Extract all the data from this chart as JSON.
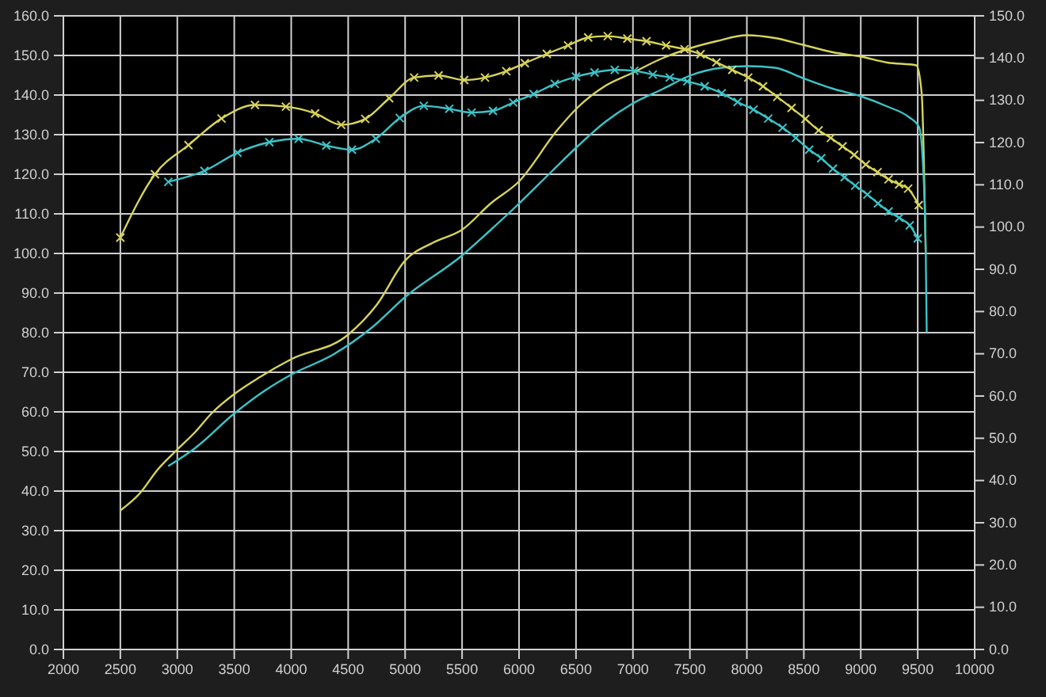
{
  "chart_data": {
    "type": "line",
    "grid": true,
    "xlim": [
      2000,
      10000
    ],
    "xticks": [
      2000,
      2500,
      3000,
      3500,
      4000,
      4500,
      5000,
      5500,
      6000,
      6500,
      7000,
      7500,
      8000,
      8500,
      9000,
      9500,
      10000
    ],
    "ylim": [
      0,
      160
    ],
    "yticks": [
      {
        "value": 0,
        "label": "0.0"
      },
      {
        "value": 10,
        "label": "10.0"
      },
      {
        "value": 20,
        "label": "20.0"
      },
      {
        "value": 30,
        "label": "30.0"
      },
      {
        "value": 40,
        "label": "40.0"
      },
      {
        "value": 50,
        "label": "50.0"
      },
      {
        "value": 60,
        "label": "60.0"
      },
      {
        "value": 70,
        "label": "70.0"
      },
      {
        "value": 80,
        "label": "80.0"
      },
      {
        "value": 90,
        "label": "90.0"
      },
      {
        "value": 100,
        "label": "100.0"
      },
      {
        "value": 110,
        "label": "110.0"
      },
      {
        "value": 120,
        "label": "120.0"
      },
      {
        "value": 130,
        "label": "130.0"
      },
      {
        "value": 140,
        "label": "140.0"
      },
      {
        "value": 150,
        "label": "150.0"
      },
      {
        "value": 160,
        "label": "160.0"
      }
    ],
    "y2lim": [
      0,
      150
    ],
    "y2ticks": [
      {
        "value": 0,
        "label": "0.0"
      },
      {
        "value": 10,
        "label": "10.0"
      },
      {
        "value": 20,
        "label": "20.0"
      },
      {
        "value": 30,
        "label": "30.0"
      },
      {
        "value": 40,
        "label": "40.0"
      },
      {
        "value": 50,
        "label": "50.0"
      },
      {
        "value": 60,
        "label": "60.0"
      },
      {
        "value": 70,
        "label": "70.0"
      },
      {
        "value": 80,
        "label": "80.0"
      },
      {
        "value": 90,
        "label": "90.0"
      },
      {
        "value": 100,
        "label": "100.0"
      },
      {
        "value": 110,
        "label": "110.0"
      },
      {
        "value": 120,
        "label": "120.0"
      },
      {
        "value": 130,
        "label": "130.0"
      },
      {
        "value": 140,
        "label": "140.0"
      },
      {
        "value": 150,
        "label": "150.0"
      }
    ],
    "series": [
      {
        "color": "#d8d45a",
        "marker": "none",
        "x": [
          2500,
          2670,
          2830,
          3000,
          3160,
          3300,
          3500,
          3720,
          4000,
          4500,
          4750,
          5000,
          5250,
          5500,
          5750,
          6000,
          6337,
          6523,
          6756,
          6988,
          7267,
          7500,
          7733,
          8000,
          8245,
          8490,
          8756,
          9000,
          9233,
          9488,
          9535,
          9570
        ],
        "values": [
          35.1,
          39.4,
          45.5,
          50.5,
          55,
          59.6,
          64.5,
          68.7,
          73.3,
          79.5,
          87,
          98.2,
          102.8,
          106,
          112.6,
          118.2,
          131.2,
          137.1,
          142.3,
          145.5,
          149.4,
          151.8,
          153.6,
          155.1,
          154.4,
          152.7,
          150.8,
          149.7,
          148.2,
          147.5,
          140.3,
          100
        ]
      },
      {
        "color": "#3cc4c8",
        "marker": "none",
        "x": [
          2920,
          3150,
          3500,
          3770,
          4000,
          4370,
          4700,
          5000,
          5500,
          5730,
          6000,
          6290,
          6523,
          6756,
          6988,
          7267,
          7500,
          7779,
          8012,
          8245,
          8490,
          8756,
          9000,
          9233,
          9419,
          9512,
          9549,
          9570,
          9579
        ],
        "values": [
          46.3,
          50.7,
          59.6,
          65.4,
          69.4,
          74.5,
          81.1,
          89,
          99.5,
          105.4,
          112.6,
          120.8,
          127.3,
          133.2,
          137.7,
          141.6,
          144.9,
          146.9,
          147.3,
          146.9,
          144.3,
          141.6,
          139.7,
          137.1,
          134.5,
          131.9,
          120.8,
          101.3,
          80.1
        ]
      },
      {
        "color": "#d8d45a",
        "axis": "y2",
        "marker": "cross",
        "x": [
          2500,
          2804,
          3098,
          3388,
          3682,
          3953,
          4210,
          4439,
          4650,
          4860,
          5079,
          5294,
          5519,
          5701,
          5888,
          6051,
          6244,
          6430,
          6607,
          6779,
          6951,
          7119,
          7291,
          7453,
          7593,
          7733,
          7872,
          8012,
          8142,
          8267,
          8393,
          8514,
          8630,
          8737,
          8840,
          8942,
          9044,
          9147,
          9244,
          9337,
          9416,
          9509
        ],
        "values": [
          97.5,
          112.5,
          119.4,
          125.7,
          128.9,
          128.5,
          126.9,
          124.2,
          125.6,
          130.5,
          135.4,
          135.9,
          134.8,
          135.4,
          136.9,
          138.8,
          141,
          143,
          144.9,
          145.2,
          144.6,
          144,
          143,
          142.1,
          140.9,
          139,
          137.2,
          135.4,
          133.3,
          130.8,
          128.2,
          125.6,
          122.9,
          121.1,
          119.1,
          117.1,
          114.8,
          113,
          111.3,
          110.1,
          109.1,
          105.2
        ]
      },
      {
        "color": "#3cc4c8",
        "axis": "y2",
        "marker": "cross",
        "x": [
          2921,
          3238,
          3528,
          3808,
          4065,
          4308,
          4533,
          4743,
          4953,
          5164,
          5388,
          5584,
          5771,
          5949,
          6128,
          6314,
          6500,
          6663,
          6840,
          7012,
          7174,
          7323,
          7477,
          7630,
          7779,
          7919,
          8058,
          8188,
          8314,
          8430,
          8547,
          8653,
          8756,
          8858,
          8951,
          9058,
          9151,
          9244,
          9337,
          9430,
          9500
        ],
        "values": [
          110.7,
          113.3,
          117.6,
          120.1,
          120.9,
          119.3,
          118.3,
          120.9,
          125.8,
          128.7,
          128,
          127.1,
          127.5,
          129.5,
          131.5,
          133.9,
          135.6,
          136.6,
          137.2,
          137,
          136.1,
          135.4,
          134.5,
          133.3,
          131.7,
          129.6,
          127.8,
          125.7,
          123.5,
          121.1,
          118.3,
          116.3,
          113.8,
          111.8,
          109.8,
          107.7,
          105.6,
          103.7,
          102.2,
          100.4,
          97.3
        ]
      }
    ]
  }
}
